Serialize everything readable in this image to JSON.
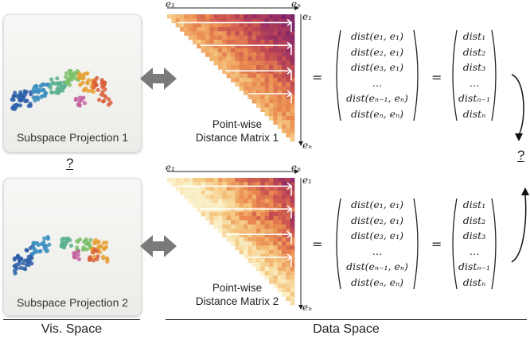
{
  "projection1": {
    "label": "Subspace Projection 1"
  },
  "projection2": {
    "label": "Subspace Projection 2"
  },
  "question_mark": "?",
  "matrix1": {
    "label_line1": "Point-wise",
    "label_line2": "Distance Matrix 1"
  },
  "matrix2": {
    "label_line1": "Point-wise",
    "label_line2": "Distance Matrix 2"
  },
  "axis": {
    "start": "e₁",
    "end": "eₙ"
  },
  "distance_entries": [
    "dist(e₁, e₁)",
    "dist(e₂, e₁)",
    "dist(e₃, e₁)",
    "…",
    "dist(eₙ₋₁, eₙ)",
    "dist(eₙ, eₙ)"
  ],
  "vector_entries": [
    "dist₁",
    "dist₂",
    "dist₃",
    "…",
    "distₙ₋₁",
    "distₙ"
  ],
  "equals": "=",
  "spaces": {
    "vis": "Vis. Space",
    "data": "Data Space"
  },
  "colors": {
    "arrow": "#777777",
    "matrix_dark": "#6a2a6e",
    "matrix_light": "#f7e3a8"
  }
}
